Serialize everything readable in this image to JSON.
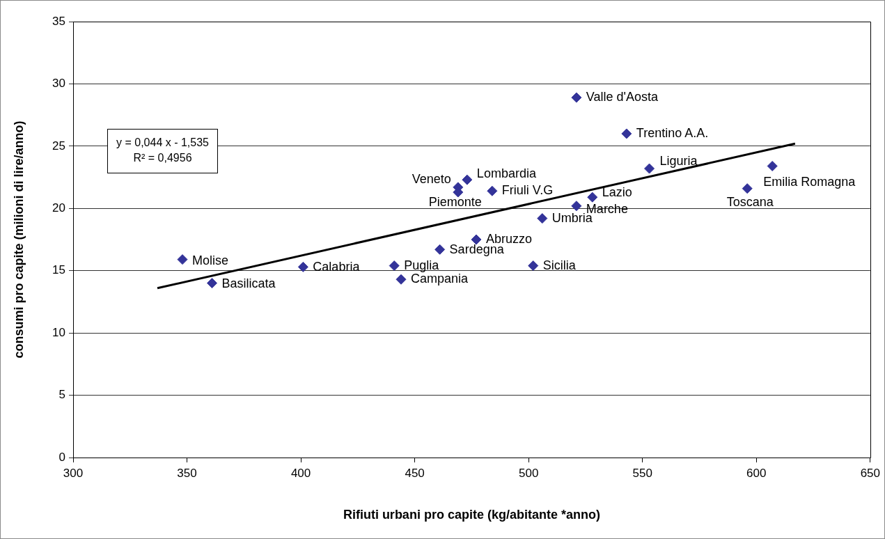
{
  "chart_data": {
    "type": "scatter",
    "xlabel": "Rifiuti urbani pro capite (kg/abitante *anno)",
    "ylabel": "consumi pro capite (milioni di lire/anno)",
    "x": [
      348,
      361,
      401,
      441,
      444,
      461,
      469,
      469,
      473,
      477,
      484,
      502,
      506,
      521,
      521,
      528,
      543,
      553,
      596,
      607
    ],
    "series": [
      {
        "color": "#333399",
        "marker": "diamond",
        "values": [
          15.9,
          14.0,
          15.3,
          15.4,
          14.3,
          16.7,
          21.7,
          21.3,
          22.3,
          17.5,
          21.4,
          15.4,
          19.2,
          28.9,
          20.2,
          20.9,
          26.0,
          23.2,
          21.6,
          23.4
        ]
      },
      {
        "type": "line",
        "color": "#000000",
        "marker": "none",
        "line_style": "solid",
        "x": [
          337,
          617
        ],
        "values": [
          13.6,
          25.2
        ]
      }
    ],
    "xlim": [
      300,
      650
    ],
    "xticks": [
      300,
      350,
      400,
      450,
      500,
      550,
      600,
      650
    ],
    "ylim": [
      0,
      35
    ],
    "yticks": [
      0,
      5,
      10,
      15,
      20,
      25,
      30,
      35
    ],
    "grid": "y",
    "annotations": [
      {
        "text": "Molise",
        "x": 348,
        "y": 15.9
      },
      {
        "text": "Basilicata",
        "x": 361,
        "y": 14.0
      },
      {
        "text": "Calabria",
        "x": 401,
        "y": 15.3
      },
      {
        "text": "Puglia",
        "x": 441,
        "y": 15.4
      },
      {
        "text": "Campania",
        "x": 444,
        "y": 14.3
      },
      {
        "text": "Sardegna",
        "x": 461,
        "y": 16.7
      },
      {
        "text": "Veneto",
        "x": 469,
        "y": 21.7
      },
      {
        "text": "Piemonte",
        "x": 469,
        "y": 21.3
      },
      {
        "text": "Lombardia",
        "x": 473,
        "y": 22.3
      },
      {
        "text": "Abruzzo",
        "x": 477,
        "y": 17.5
      },
      {
        "text": "Friuli V.G",
        "x": 484,
        "y": 21.4
      },
      {
        "text": "Sicilia",
        "x": 502,
        "y": 15.4
      },
      {
        "text": "Umbria",
        "x": 506,
        "y": 19.2
      },
      {
        "text": "Valle d'Aosta",
        "x": 521,
        "y": 28.9
      },
      {
        "text": "Marche",
        "x": 521,
        "y": 20.2
      },
      {
        "text": "Lazio",
        "x": 528,
        "y": 20.9
      },
      {
        "text": "Trentino A.A.",
        "x": 543,
        "y": 26.0
      },
      {
        "text": "Liguria",
        "x": 553,
        "y": 23.2
      },
      {
        "text": "Toscana",
        "x": 596,
        "y": 21.6
      },
      {
        "text": "Emilia Romagna",
        "x": 607,
        "y": 23.4
      },
      "y = 0,044 x - 1,535",
      "R² = 0,4956"
    ]
  }
}
